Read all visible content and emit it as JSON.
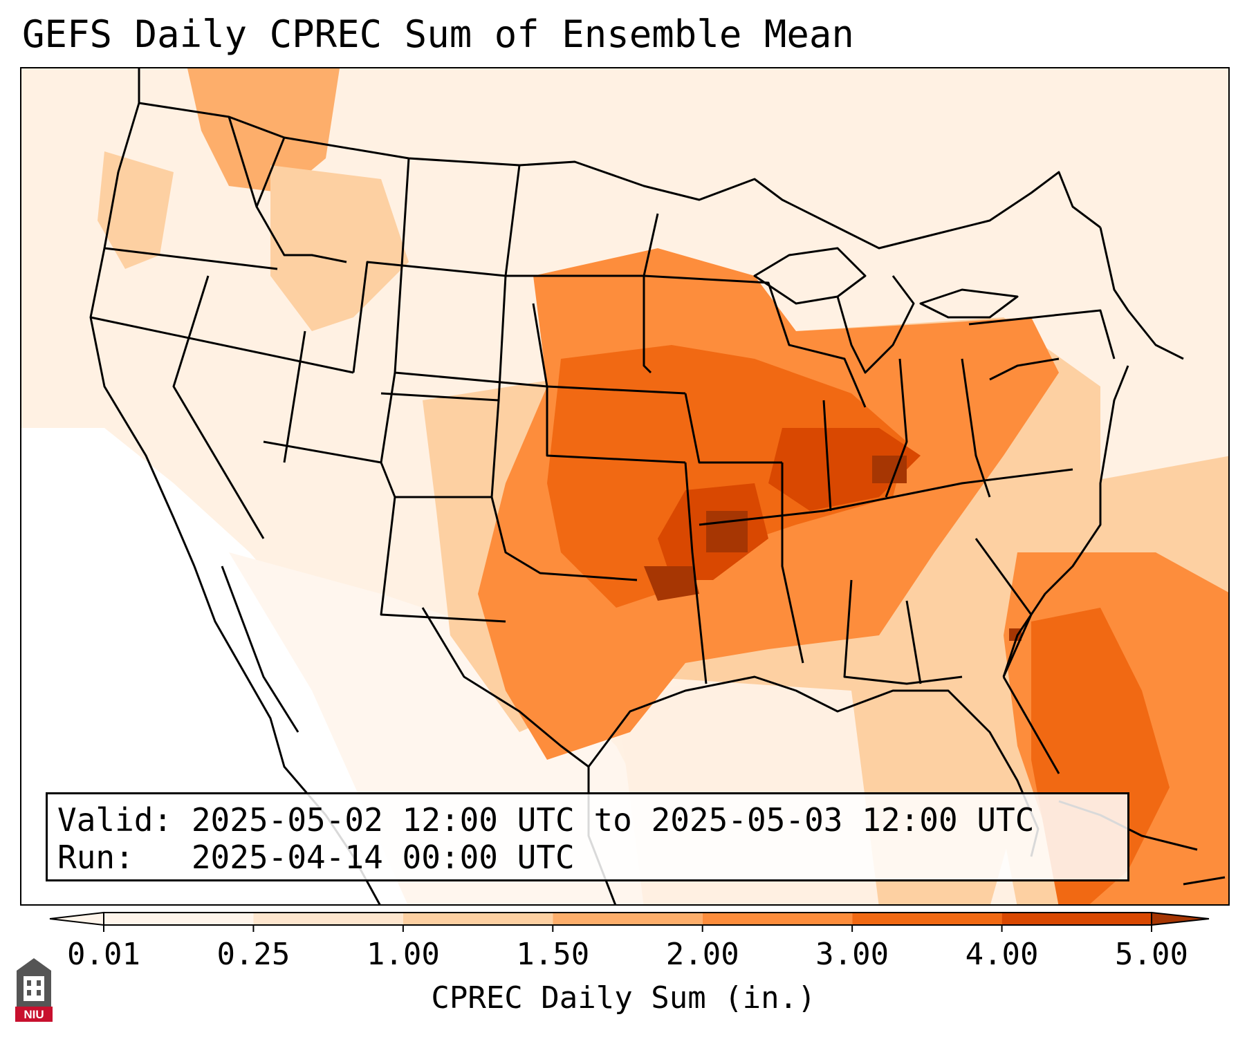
{
  "title": "GEFS Daily CPREC Sum of Ensemble Mean",
  "valid_line": "Valid: 2025-05-02 12:00 UTC to 2025-05-03 12:00 UTC",
  "run_line": "Run:   2025-04-14 00:00 UTC",
  "colorbar": {
    "label": "CPREC Daily Sum (in.)",
    "ticks": [
      "0.01",
      "0.25",
      "1.00",
      "1.50",
      "2.00",
      "3.00",
      "4.00",
      "5.00"
    ],
    "colors": [
      "#fff5eb",
      "#fee6ce",
      "#fdd0a2",
      "#fdae6b",
      "#fd8d3c",
      "#f16913",
      "#d94801",
      "#a63603"
    ]
  },
  "logo": {
    "icon": "niu-logo-icon",
    "text": "NIU"
  }
}
